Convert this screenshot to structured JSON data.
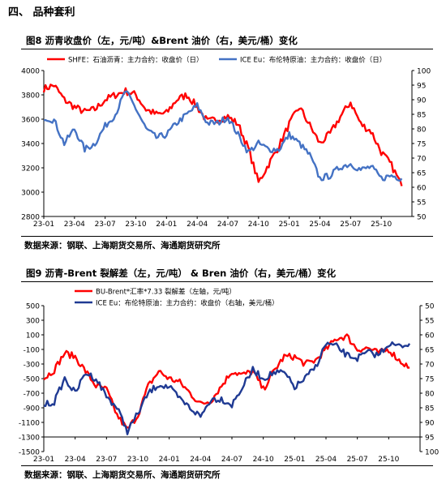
{
  "section": {
    "title": "四、  品种套利"
  },
  "charts": [
    {
      "caption": "图8   沥青收盘价（左，元/吨）&Brent 油价（右，美元/桶）变化",
      "source": "数据来源：钢联、上海期货交易所、海通期货研究所"
    },
    {
      "caption": "图9   沥青-Brent 裂解差（左，元/吨） & Bren 油价（右，美元/桶）变化",
      "source": "数据来源：钢联、上海期货交易所、海通期货研究所"
    }
  ],
  "chart_data": [
    {
      "type": "line",
      "x_tick_labels": [
        "23-01",
        "23-04",
        "23-07",
        "23-10",
        "24-01",
        "24-04",
        "24-07",
        "24-10",
        "25-01",
        "25-04",
        "25-07",
        "25-10"
      ],
      "y_left": {
        "ticks": [
          2800,
          3000,
          3200,
          3400,
          3600,
          3800,
          4000
        ],
        "range": [
          2800,
          4000
        ]
      },
      "y_right": {
        "ticks": [
          50,
          55,
          60,
          65,
          70,
          75,
          80,
          85,
          90,
          95,
          100
        ],
        "range": [
          50,
          100
        ]
      },
      "grid": false,
      "legend": "top",
      "series": [
        {
          "name": "SHFE：石油沥青：主力合约：收盘价（日）",
          "axis": "left",
          "color": "#ff0000",
          "x": [
            "23-01",
            "23-02",
            "23-03",
            "23-04",
            "23-05",
            "23-06",
            "23-07",
            "23-08",
            "23-09",
            "23-10",
            "23-11",
            "23-12",
            "24-01",
            "24-02",
            "24-03",
            "24-04",
            "24-05",
            "24-06",
            "24-07",
            "24-08",
            "24-09",
            "24-10",
            "24-11",
            "24-12",
            "25-01",
            "25-02",
            "25-03",
            "25-04",
            "25-05",
            "25-06",
            "25-07",
            "25-08",
            "25-09",
            "25-10",
            "25-11",
            "25-12"
          ],
          "values": [
            3850,
            3880,
            3760,
            3700,
            3660,
            3680,
            3760,
            3800,
            3830,
            3800,
            3680,
            3640,
            3650,
            3760,
            3800,
            3700,
            3580,
            3600,
            3620,
            3560,
            3360,
            3080,
            3230,
            3380,
            3560,
            3700,
            3550,
            3400,
            3480,
            3620,
            3740,
            3560,
            3500,
            3330,
            3220,
            3050
          ]
        },
        {
          "name": "ICE Eu：布伦特原油：主力合约：收盘价（日）",
          "axis": "right",
          "color": "#4472c4",
          "x": [
            "23-01",
            "23-02",
            "23-03",
            "23-04",
            "23-05",
            "23-06",
            "23-07",
            "23-08",
            "23-09",
            "23-10",
            "23-11",
            "23-12",
            "24-01",
            "24-02",
            "24-03",
            "24-04",
            "24-05",
            "24-06",
            "24-07",
            "24-08",
            "24-09",
            "24-10",
            "24-11",
            "24-12",
            "25-01",
            "25-02",
            "25-03",
            "25-04",
            "25-05",
            "25-06",
            "25-07",
            "25-08",
            "25-09",
            "25-10",
            "25-11",
            "25-12"
          ],
          "values": [
            84,
            83,
            75,
            80,
            73,
            75,
            81,
            85,
            93,
            87,
            80,
            77,
            78,
            82,
            85,
            88,
            82,
            82,
            84,
            78,
            72,
            75,
            73,
            73,
            78,
            75,
            71,
            63,
            64,
            67,
            68,
            66,
            67,
            63,
            64,
            63
          ]
        }
      ]
    },
    {
      "type": "line",
      "x_tick_labels": [
        "23-01",
        "23-04",
        "23-07",
        "23-10",
        "24-01",
        "24-04",
        "24-07",
        "24-10",
        "25-01",
        "25-04",
        "25-07",
        "25-10"
      ],
      "y_left": {
        "ticks": [
          -1500,
          -1300,
          -1100,
          -900,
          -700,
          -500,
          -300,
          -100,
          100,
          300,
          500
        ],
        "range": [
          -1500,
          500
        ]
      },
      "y_right": {
        "ticks": [
          100,
          95,
          90,
          85,
          80,
          75,
          70,
          65,
          60,
          55,
          50
        ],
        "range": [
          100,
          50
        ],
        "inverted": true
      },
      "grid": false,
      "legend": "top",
      "series": [
        {
          "name": "BU-Brent*汇率*7.33 裂解差（左轴，元/吨）",
          "axis": "left",
          "color": "#ff0000",
          "x": [
            "23-01",
            "23-02",
            "23-03",
            "23-04",
            "23-05",
            "23-06",
            "23-07",
            "23-08",
            "23-09",
            "23-10",
            "23-11",
            "23-12",
            "24-01",
            "24-02",
            "24-03",
            "24-04",
            "24-05",
            "24-06",
            "24-07",
            "24-08",
            "24-09",
            "24-10",
            "24-11",
            "24-12",
            "25-01",
            "25-02",
            "25-03",
            "25-04",
            "25-05",
            "25-06",
            "25-07",
            "25-08",
            "25-09",
            "25-10",
            "25-11",
            "25-12"
          ],
          "values": [
            -500,
            -380,
            -150,
            -200,
            -400,
            -600,
            -650,
            -1000,
            -1200,
            -1000,
            -600,
            -400,
            -500,
            -550,
            -700,
            -850,
            -800,
            -600,
            -400,
            -450,
            -400,
            -650,
            -400,
            -200,
            -200,
            -300,
            -250,
            -100,
            50,
            80,
            -100,
            -80,
            -150,
            -100,
            -250,
            -350
          ]
        },
        {
          "name": "ICE Eu：布伦特原油：主力合约：收盘价（右轴，美元/桶）",
          "axis": "right",
          "color": "#1f3a93",
          "x": [
            "23-01",
            "23-02",
            "23-03",
            "23-04",
            "23-05",
            "23-06",
            "23-07",
            "23-08",
            "23-09",
            "23-10",
            "23-11",
            "23-12",
            "24-01",
            "24-02",
            "24-03",
            "24-04",
            "24-05",
            "24-06",
            "24-07",
            "24-08",
            "24-09",
            "24-10",
            "24-11",
            "24-12",
            "25-01",
            "25-02",
            "25-03",
            "25-04",
            "25-05",
            "25-06",
            "25-07",
            "25-08",
            "25-09",
            "25-10",
            "25-11",
            "25-12"
          ],
          "values": [
            84,
            83,
            75,
            80,
            73,
            75,
            81,
            85,
            93,
            87,
            80,
            77,
            78,
            82,
            85,
            88,
            82,
            82,
            84,
            78,
            72,
            75,
            73,
            73,
            78,
            75,
            71,
            63,
            64,
            67,
            68,
            66,
            67,
            63,
            64,
            63
          ]
        }
      ]
    }
  ]
}
